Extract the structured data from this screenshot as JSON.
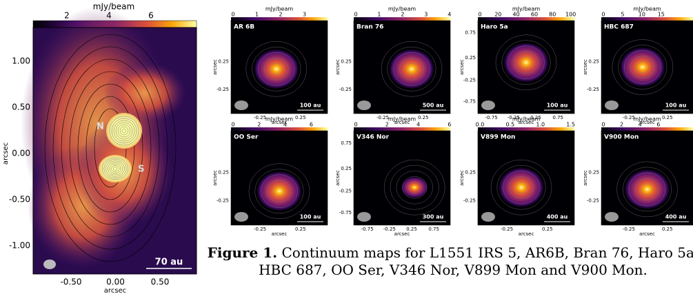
{
  "main_panel": {
    "colorbar_label": "mJy/beam",
    "colorbar_ticks": [
      "2",
      "4",
      "6"
    ],
    "y_ticks": [
      "1.00",
      "0.50",
      "0.00",
      "-0.50",
      "-1.00"
    ],
    "x_ticks": [
      "-0.50",
      "0.00",
      "0.50"
    ],
    "x_label": "arcsec",
    "y_label": "arcsec",
    "sources": [
      "N",
      "S"
    ],
    "scale_bar": "70 au"
  },
  "panels": [
    {
      "name": "AR 6B",
      "colorbar_label": "mJy/beam",
      "colorbar_ticks": [
        "0",
        "1",
        "2",
        "3"
      ],
      "y_ticks": [
        "0.25",
        "-0.25"
      ],
      "x_ticks": [
        "-0.25",
        "0.25"
      ],
      "x_label": "arcsec",
      "y_label": "arcsec",
      "scale_bar": "100 au"
    },
    {
      "name": "Bran 76",
      "colorbar_label": "mJy/beam",
      "colorbar_ticks": [
        "0",
        "1",
        "2",
        "3",
        "4"
      ],
      "y_ticks": [
        "0.25",
        "-0.25"
      ],
      "x_ticks": [
        "-0.25",
        "0.25"
      ],
      "x_label": "arcsec",
      "y_label": "arcsec",
      "scale_bar": "500 au"
    },
    {
      "name": "Haro 5a",
      "colorbar_label": "mJy/beam",
      "colorbar_ticks": [
        "0",
        "20",
        "40",
        "60",
        "80",
        "100"
      ],
      "y_ticks": [
        "0.75",
        "0.25",
        "-0.25",
        "-0.75"
      ],
      "x_ticks": [
        "-0.75",
        "-0.25",
        "0.25",
        "0.75"
      ],
      "x_label": "arcsec",
      "y_label": "arcsec",
      "scale_bar": "100 au"
    },
    {
      "name": "HBC 687",
      "colorbar_label": "mJy/beam",
      "colorbar_ticks": [
        "0",
        "5",
        "10",
        "15"
      ],
      "y_ticks": [
        "0.25",
        "-0.25"
      ],
      "x_ticks": [
        "-0.25",
        "0.25"
      ],
      "x_label": "arcsec",
      "y_label": "arcsec",
      "scale_bar": "100 au"
    },
    {
      "name": "OO Ser",
      "colorbar_label": "mJy/beam",
      "colorbar_ticks": [
        "0",
        "2",
        "4",
        "6"
      ],
      "y_ticks": [
        "0.25",
        "-0.25"
      ],
      "x_ticks": [
        "-0.25",
        "0.25"
      ],
      "x_label": "arcsec",
      "y_label": "arcsec",
      "scale_bar": "100 au"
    },
    {
      "name": "V346 Nor",
      "colorbar_label": "mJy/beam",
      "colorbar_ticks": [
        "0",
        "2",
        "4",
        "6"
      ],
      "y_ticks": [
        "0.75",
        "0.25",
        "-0.25",
        "-0.75"
      ],
      "x_ticks": [
        "-0.75",
        "-0.25",
        "0.25",
        "0.75"
      ],
      "x_label": "arcsec",
      "y_label": "arcsec",
      "scale_bar": "300 au"
    },
    {
      "name": "V899 Mon",
      "colorbar_label": "mJy/beam",
      "colorbar_ticks": [
        "0.0",
        "0.5",
        "1.0",
        "1.5"
      ],
      "y_ticks": [
        "0.25",
        "-0.25"
      ],
      "x_ticks": [
        "-0.25",
        "0.25"
      ],
      "x_label": "arcsec",
      "y_label": "arcsec",
      "scale_bar": "400 au"
    },
    {
      "name": "V900 Mon",
      "colorbar_label": "mJy/beam",
      "colorbar_ticks": [
        "0",
        "2",
        "4",
        "6"
      ],
      "y_ticks": [
        "0.25",
        "-0.25"
      ],
      "x_ticks": [
        "-0.25",
        "0.25"
      ],
      "x_label": "arcsec",
      "y_label": "arcsec",
      "scale_bar": "400 au"
    }
  ],
  "caption": {
    "label": "Figure 1.",
    "text": "Continuum maps for L1551 IRS 5, AR6B, Bran 76, Haro 5a, HBC 687, OO Ser, V346 Nor, V899 Mon and V900 Mon."
  }
}
